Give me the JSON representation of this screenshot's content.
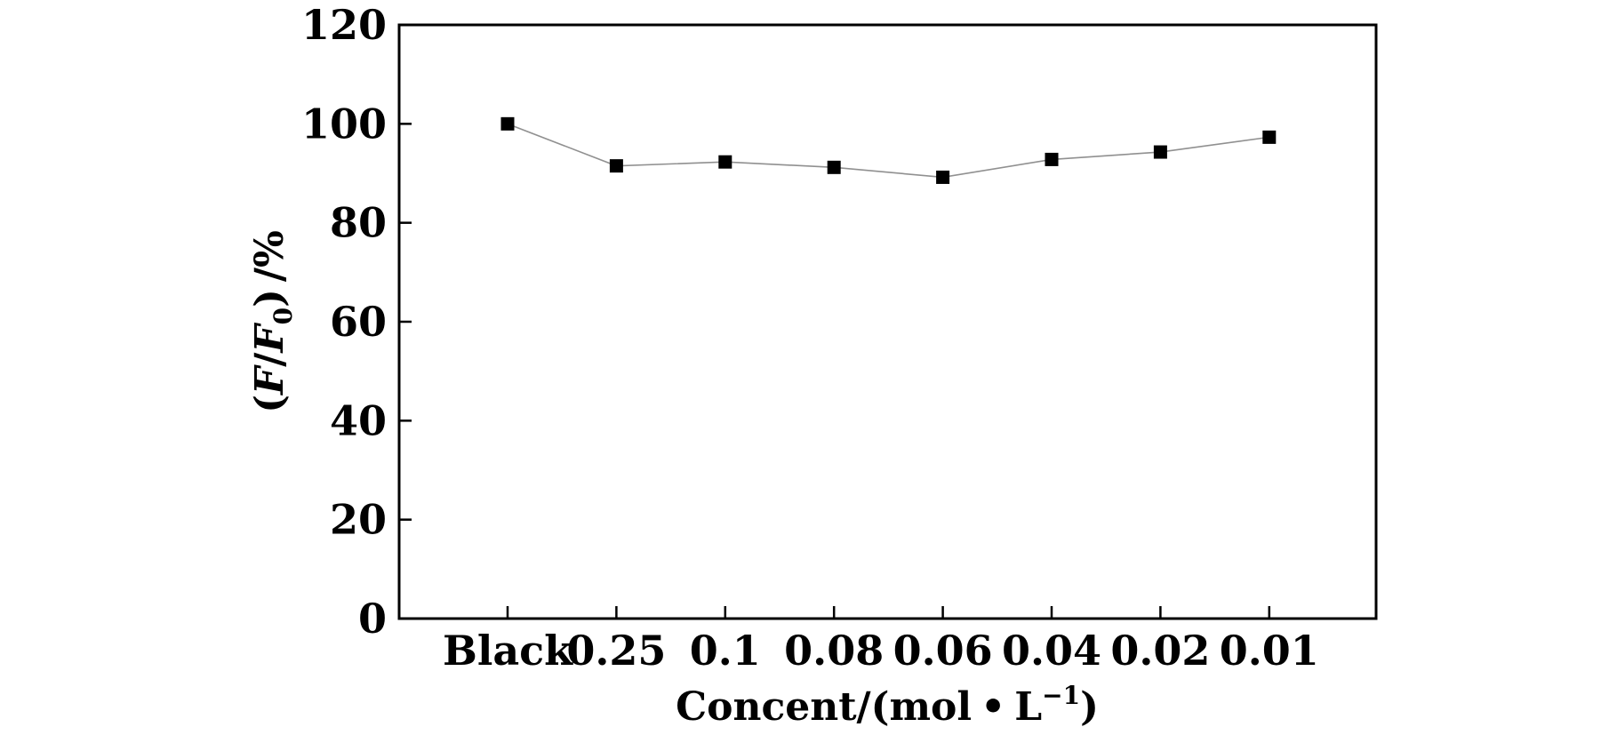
{
  "chart_data": {
    "type": "line",
    "categories": [
      "Black",
      "0.25",
      "0.1",
      "0.08",
      "0.06",
      "0.04",
      "0.02",
      "0.01"
    ],
    "series": [
      {
        "values": [
          100,
          91.5,
          92.3,
          91.2,
          89.2,
          92.8,
          94.3,
          97.3
        ],
        "color": "#000000",
        "line_color": "#909090",
        "marker": "square"
      }
    ],
    "ylim": [
      0,
      120
    ],
    "yticks": [
      0,
      20,
      40,
      60,
      80,
      100,
      120
    ],
    "ytick_labels": [
      "0",
      "20",
      "40",
      "60",
      "80",
      "100",
      "120"
    ],
    "xlabel": {
      "prefix": "Concent/(mol",
      "dot": "•",
      "unit": "L",
      "superscript": "−1",
      "suffix": ")"
    },
    "ylabel": {
      "open": "(",
      "f": "F",
      "slash": "/",
      "f0": "F",
      "subscript": "0",
      "close": ")",
      "unit": "/%"
    },
    "grid": false,
    "legend": "none"
  }
}
